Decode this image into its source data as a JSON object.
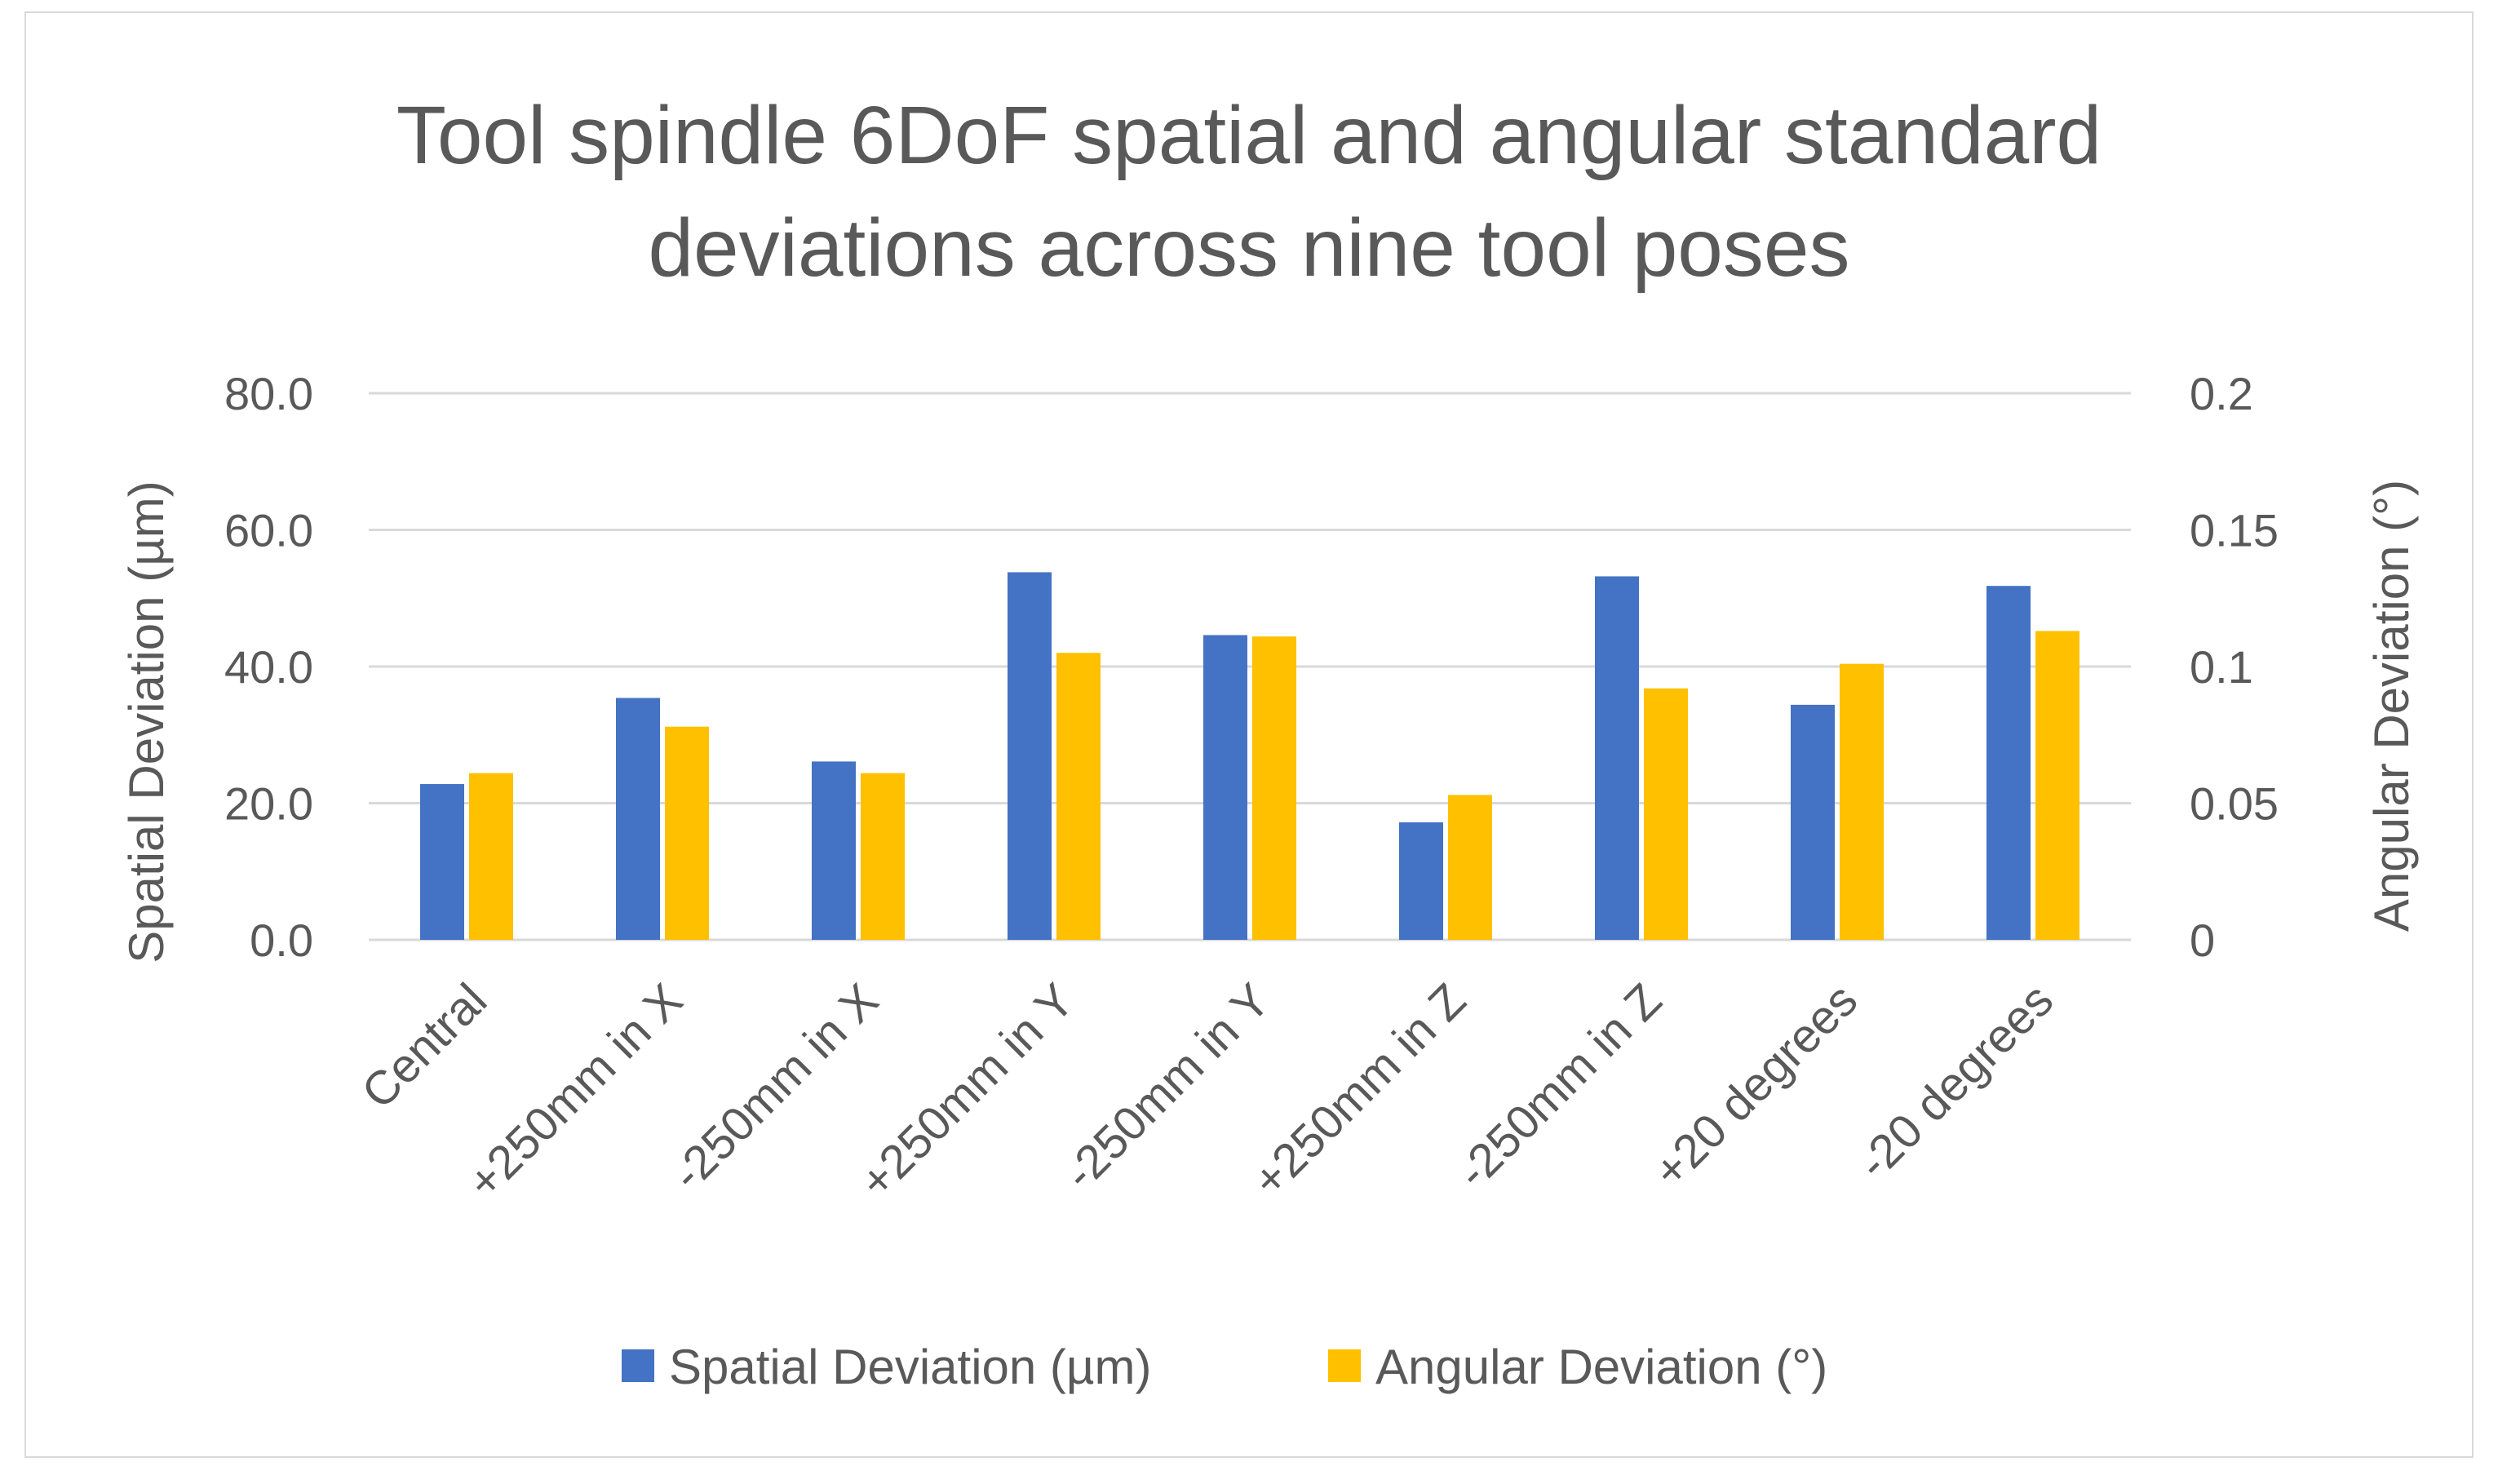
{
  "chart_data": {
    "type": "bar",
    "title_lines": [
      "Tool spindle 6DoF spatial and angular standard",
      "deviations across nine tool poses"
    ],
    "categories": [
      "Central",
      "+250mm in X",
      "-250mm in X",
      "+250mm in Y",
      "-250mm in Y",
      "+250mm in Z",
      "-250mm in Z",
      "+20 degrees",
      "-20 degrees"
    ],
    "series": [
      {
        "name": "Spatial Deviation (µm)",
        "axis": "left",
        "color": "#4472c4",
        "values": [
          22.8,
          35.4,
          26.1,
          53.8,
          44.6,
          17.2,
          53.2,
          34.4,
          51.8
        ]
      },
      {
        "name": "Angular Deviation (°)",
        "axis": "right",
        "color": "#ffc000",
        "values": [
          0.061,
          0.078,
          0.061,
          0.105,
          0.111,
          0.053,
          0.092,
          0.101,
          0.113
        ]
      }
    ],
    "ylabel": "Spatial Deviation (µm)",
    "y2label": "Angular Deviation (°)",
    "ylim": [
      0,
      80
    ],
    "y2lim": [
      0,
      0.2
    ],
    "yticks": [
      "0.0",
      "20.0",
      "40.0",
      "60.0",
      "80.0"
    ],
    "y2ticks": [
      "0",
      "0.05",
      "0.1",
      "0.15",
      "0.2"
    ],
    "gridlines": true,
    "legend_position": "bottom",
    "gridline_color": "#d9d9d9"
  }
}
